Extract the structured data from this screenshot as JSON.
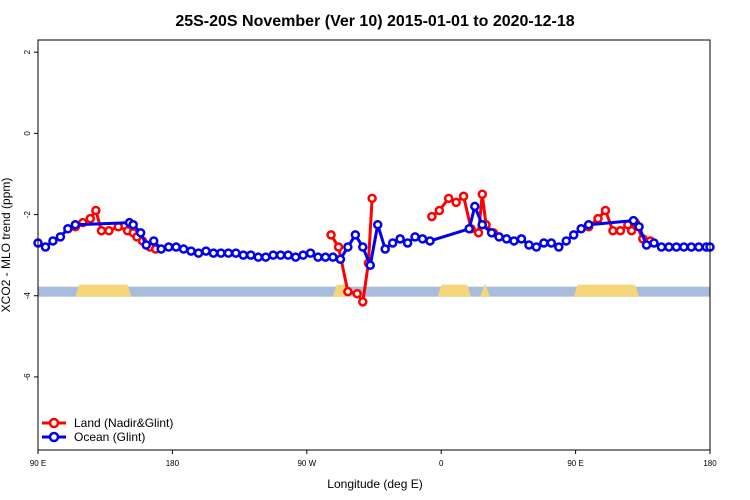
{
  "chart_data": {
    "type": "line",
    "title": "25S-20S November (Ver 10)   2015-01-01 to 2020-12-18",
    "xlabel": "Longitude (deg E)",
    "ylabel": "XCO2 - MLO trend (ppm)",
    "xlim": [
      90,
      450
    ],
    "ylim": [
      -7.8,
      2.3
    ],
    "x_ticks": [
      90,
      162,
      234,
      306,
      378,
      450
    ],
    "x_tick_labels": [
      "90 E",
      "180",
      "90 W",
      "0",
      "90 E",
      "180"
    ],
    "y_ticks": [
      2,
      0,
      -2,
      -4,
      -6
    ],
    "y_tick_labels": [
      "2",
      "0",
      "-2",
      "-4",
      "-6"
    ],
    "legend": {
      "position": "bottom-left",
      "entries": [
        "Land (Nadir&Glint)",
        "Ocean (Glint)"
      ]
    },
    "land_ocean_strip": {
      "y_center": -3.9,
      "ocean_color": "#a8bcdc",
      "land_color": "#f5d67a",
      "land_ranges": [
        [
          110,
          140
        ],
        [
          248,
          258
        ],
        [
          304,
          322
        ],
        [
          327,
          332
        ],
        [
          377,
          412
        ]
      ]
    },
    "series": [
      {
        "name": "Land (Nadir&Glint)",
        "color": "#ff0000",
        "segments": [
          {
            "x": [
              110,
              114,
              118,
              121,
              124,
              128,
              133,
              138,
              141,
              143,
              146,
              150,
              153
            ],
            "y": [
              -2.3,
              -2.2,
              -2.1,
              -1.9,
              -2.4,
              -2.4,
              -2.3,
              -2.4,
              -2.45,
              -2.55,
              -2.65,
              -2.8,
              -2.85
            ]
          },
          {
            "x": [
              247,
              251,
              256,
              261,
              264,
              267,
              269
            ],
            "y": [
              -2.5,
              -2.8,
              -3.9,
              -3.95,
              -4.15,
              -3.2,
              -1.6
            ]
          },
          {
            "x": [
              301,
              305,
              310,
              314,
              318,
              322,
              326,
              328,
              330,
              334
            ],
            "y": [
              -2.05,
              -1.9,
              -1.6,
              -1.7,
              -1.55,
              -2.35,
              -2.45,
              -1.5,
              -2.25,
              -2.45
            ]
          },
          {
            "x": [
              385,
              390,
              394,
              398,
              402,
              406,
              408,
              410,
              414,
              418
            ],
            "y": [
              -2.3,
              -2.1,
              -1.9,
              -2.4,
              -2.4,
              -2.25,
              -2.4,
              -2.2,
              -2.6,
              -2.65
            ]
          }
        ]
      },
      {
        "name": "Ocean (Glint)",
        "color": "#0000ee",
        "segments": [
          {
            "x": [
              90,
              94,
              98,
              102,
              106,
              110,
              139,
              141,
              145,
              148,
              152,
              156,
              160,
              164,
              168,
              172,
              176,
              180,
              184,
              188,
              192,
              196,
              200,
              204,
              208,
              212,
              216,
              220,
              224,
              228,
              232,
              236,
              240,
              244,
              248,
              252,
              256,
              260,
              264,
              268,
              272,
              276,
              280,
              284,
              288,
              292,
              296,
              300,
              321,
              324,
              328,
              333,
              337,
              341,
              345,
              349,
              353,
              357,
              361,
              365,
              369,
              373,
              377,
              381,
              385,
              409,
              412,
              416,
              420,
              424,
              428,
              432,
              436,
              440,
              444,
              448,
              450
            ],
            "y": [
              -2.7,
              -2.8,
              -2.65,
              -2.55,
              -2.35,
              -2.25,
              -2.2,
              -2.25,
              -2.45,
              -2.75,
              -2.65,
              -2.85,
              -2.8,
              -2.8,
              -2.85,
              -2.9,
              -2.95,
              -2.9,
              -2.95,
              -2.95,
              -2.95,
              -2.95,
              -3.0,
              -3.0,
              -3.05,
              -3.05,
              -3.0,
              -3.0,
              -3.0,
              -3.05,
              -3.0,
              -2.95,
              -3.05,
              -3.05,
              -3.05,
              -3.1,
              -2.8,
              -2.5,
              -2.8,
              -3.25,
              -2.25,
              -2.85,
              -2.7,
              -2.6,
              -2.7,
              -2.55,
              -2.6,
              -2.65,
              -2.35,
              -1.8,
              -2.25,
              -2.45,
              -2.55,
              -2.6,
              -2.65,
              -2.6,
              -2.75,
              -2.8,
              -2.7,
              -2.7,
              -2.8,
              -2.65,
              -2.5,
              -2.35,
              -2.25,
              -2.15,
              -2.3,
              -2.75,
              -2.7,
              -2.8,
              -2.8,
              -2.8,
              -2.8,
              -2.8,
              -2.8,
              -2.8,
              -2.8
            ]
          }
        ]
      }
    ]
  }
}
